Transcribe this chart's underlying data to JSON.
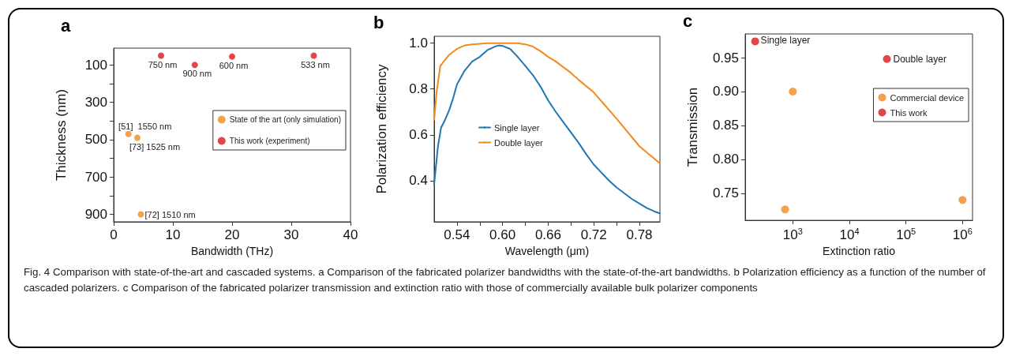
{
  "chart_data": [
    {
      "type": "scatter",
      "title": "a",
      "xlabel": "Bandwidth (THz)",
      "ylabel": "Thickness (nm)",
      "xlim": [
        0,
        40
      ],
      "xticks": [
        0,
        10,
        20,
        30,
        40
      ],
      "ylim": [
        940,
        10
      ],
      "yticks": [
        100,
        {
          "value": 200,
          "label": null
        },
        300,
        {
          "value": 400,
          "label": null
        },
        500,
        {
          "value": 600,
          "label": null
        },
        700,
        {
          "value": 800,
          "label": null
        },
        900
      ],
      "marker": "circle",
      "legend": "right",
      "series": [
        {
          "name": "State of the art (only simulation)",
          "color": "#f28a1e",
          "x": [
            2.5,
            4.0,
            4.6
          ],
          "values": [
            470,
            490,
            900
          ]
        },
        {
          "name": "This work (experiment)",
          "color": "#d7191c",
          "x": [
            8.0,
            13.7,
            20.0,
            33.8
          ],
          "values": [
            50,
            100,
            55,
            50
          ]
        }
      ],
      "annotations": [
        {
          "text": "750 nm",
          "x": 8.0,
          "y": 50
        },
        {
          "text": "900 nm",
          "x": 13.7,
          "y": 100
        },
        {
          "text": "600 nm",
          "x": 20.0,
          "y": 55
        },
        {
          "text": "533 nm",
          "x": 33.8,
          "y": 50
        },
        {
          "text": "[51]  1550 nm",
          "x": 2.5,
          "y": 470
        },
        {
          "text": "[73] 1525 nm",
          "x": 4.0,
          "y": 490
        },
        {
          "text": "[72] 1510 nm",
          "x": 4.6,
          "y": 900
        },
        "Fig. 4 Comparison with state-of-the-art and cascaded systems. a Comparison of the fabricated polarizer bandwidths with the state-of-the-art bandwidths. b Polarization efficiency as a function of the number of cascaded polarizers. c Comparison of the fabricated polarizer transmission and extinction ratio with those of commercially available bulk polarizer components"
      ]
    },
    {
      "type": "line",
      "title": "b",
      "xlabel": "Wavelength (μm)",
      "ylabel": "Polarization efficiency",
      "xlim": [
        0.51,
        0.807
      ],
      "xticks": [
        0.54,
        {
          "value": 0.57,
          "label": null
        },
        "0.60",
        {
          "value": 0.63,
          "label": null
        },
        0.66,
        {
          "value": 0.69,
          "label": null
        },
        0.72,
        {
          "value": 0.75,
          "label": null
        },
        0.78
      ],
      "ylim": [
        0.22,
        1.03
      ],
      "yticks": [
        0.4,
        0.6,
        0.8,
        {
          "value": 1.0,
          "label": "1.0"
        }
      ],
      "marker": "none",
      "line_style": "solid",
      "legend": "left",
      "series": [
        {
          "name": "Single layer",
          "color": "#1f77b4",
          "x": [
            0.51,
            0.512,
            0.515,
            0.519,
            0.525,
            0.53,
            0.535,
            0.54,
            0.545,
            0.55,
            0.56,
            0.57,
            0.58,
            0.59,
            0.595,
            0.6,
            0.61,
            0.62,
            0.63,
            0.64,
            0.65,
            0.66,
            0.67,
            0.68,
            0.69,
            0.7,
            0.71,
            0.72,
            0.73,
            0.74,
            0.75,
            0.76,
            0.77,
            0.78,
            0.79,
            0.8,
            0.807
          ],
          "values": [
            0.385,
            0.45,
            0.55,
            0.63,
            0.67,
            0.71,
            0.76,
            0.82,
            0.85,
            0.88,
            0.92,
            0.94,
            0.97,
            0.985,
            0.99,
            0.988,
            0.975,
            0.94,
            0.9,
            0.86,
            0.81,
            0.75,
            0.7,
            0.655,
            0.61,
            0.565,
            0.515,
            0.47,
            0.435,
            0.4,
            0.37,
            0.345,
            0.32,
            0.3,
            0.28,
            0.265,
            0.257
          ]
        },
        {
          "name": "Double layer",
          "color": "#f28a1e",
          "x": [
            0.51,
            0.513,
            0.518,
            0.525,
            0.53,
            0.54,
            0.55,
            0.56,
            0.58,
            0.6,
            0.62,
            0.63,
            0.64,
            0.65,
            0.66,
            0.67,
            0.68,
            0.69,
            0.7,
            0.72,
            0.75,
            0.78,
            0.807
          ],
          "values": [
            0.665,
            0.78,
            0.9,
            0.93,
            0.95,
            0.975,
            0.99,
            0.995,
            1.0,
            1.0,
            1.0,
            0.995,
            0.985,
            0.965,
            0.94,
            0.92,
            0.895,
            0.87,
            0.84,
            0.785,
            0.67,
            0.55,
            0.475
          ]
        }
      ]
    },
    {
      "type": "scatter",
      "title": "c",
      "xlabel": "Extinction ratio",
      "ylabel": "Transmission",
      "log": "x",
      "xlim": [
        144,
        1500000
      ],
      "xticks": [
        {
          "value": 1000,
          "label": "10$^{3}$"
        },
        {
          "value": 10000,
          "label": "10$^{4}$"
        },
        {
          "value": 100000,
          "label": "10$^{5}$"
        },
        {
          "value": 1000000,
          "label": "10$^{6}$"
        }
      ],
      "ylim": [
        0.71,
        0.985
      ],
      "yticks": [
        0.75,
        "0.80",
        0.85,
        "0.90",
        0.95
      ],
      "marker": "circle",
      "legend": "right",
      "series": [
        {
          "name": "Commercial device",
          "color": "#f28a1e",
          "x": [
            1000,
            730,
            1000000
          ],
          "values": [
            0.9,
            0.726,
            0.74
          ]
        },
        {
          "name": "This work",
          "color": "#d7191c",
          "x": [
            216,
            46000
          ],
          "values": [
            0.974,
            0.948
          ]
        }
      ],
      "annotations": [
        {
          "text": "Single layer",
          "x": 216,
          "y": 0.974
        },
        {
          "text": "Double layer",
          "x": 46000,
          "y": 0.948
        }
      ]
    }
  ]
}
